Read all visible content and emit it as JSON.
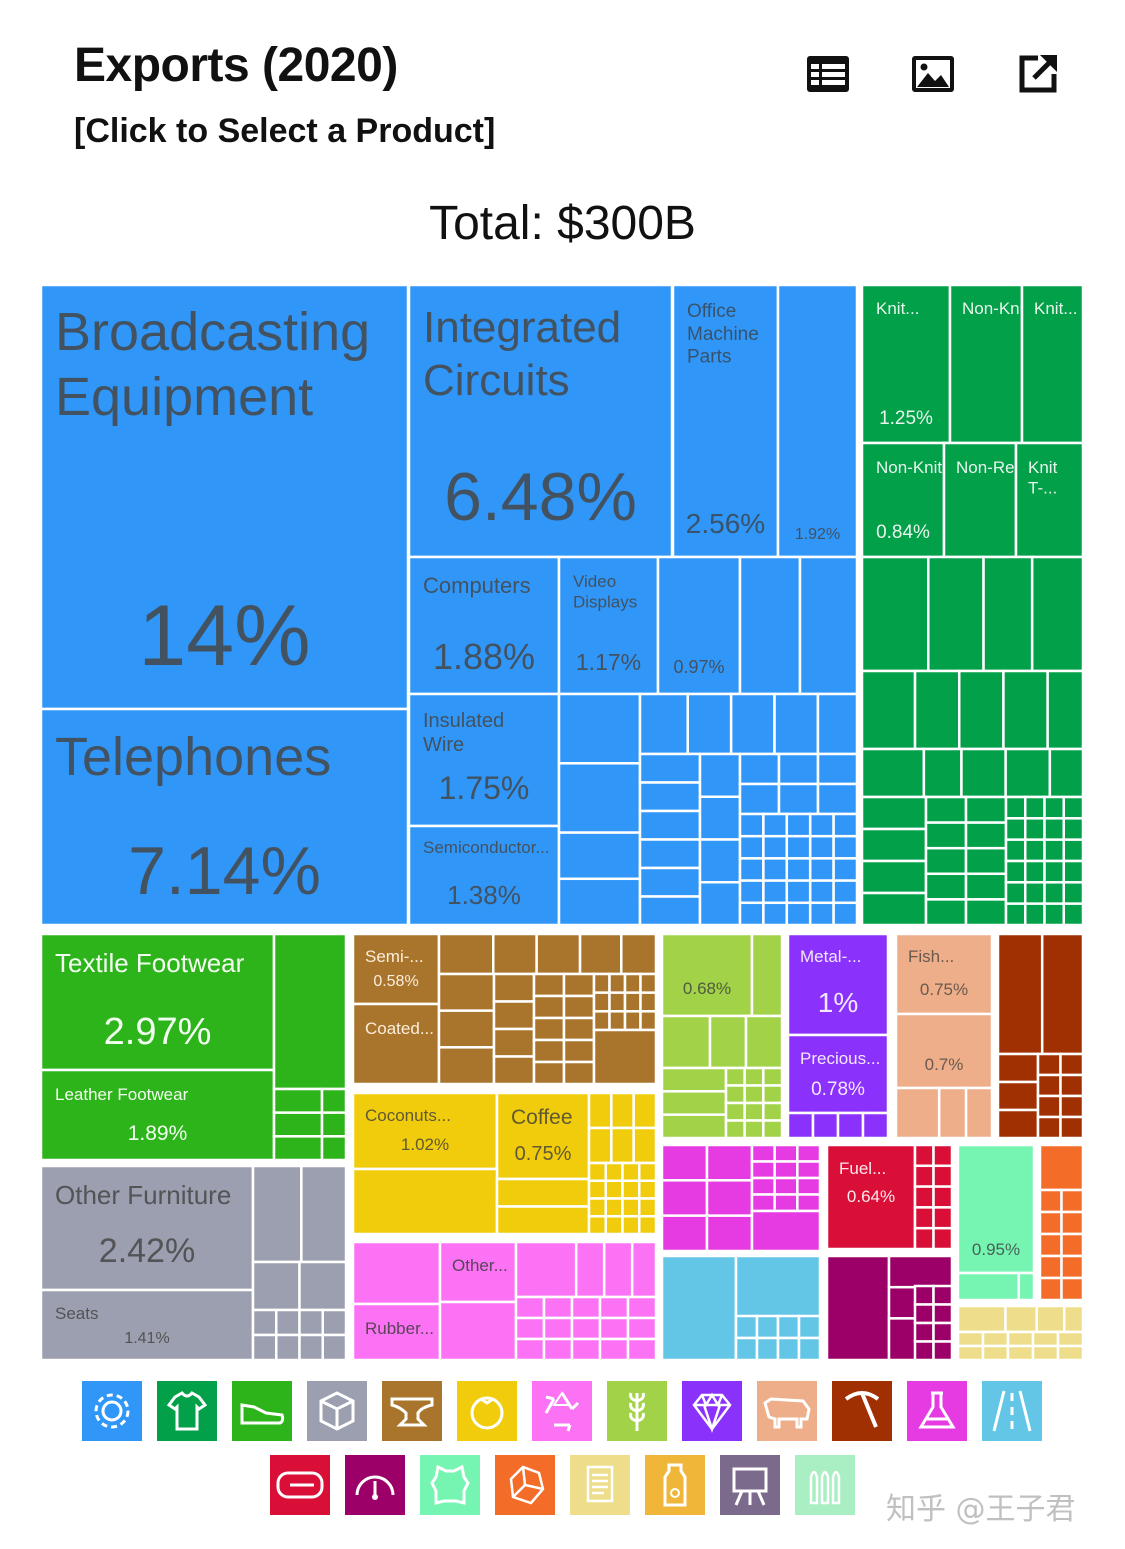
{
  "header": {
    "title": "Exports (2020)",
    "subtitle": "[Click to Select a Product]",
    "total": "Total: $300B"
  },
  "toolbar": [
    {
      "name": "table-icon"
    },
    {
      "name": "image-icon"
    },
    {
      "name": "external-link-icon"
    }
  ],
  "watermark": "知乎 @王子君",
  "colors": {
    "machinery": "#3096F8",
    "textiles": "#02A048",
    "footwear": "#2DB41A",
    "misc": "#9C9FAF",
    "metals": "#A9742B",
    "foodstuffs": "#F1CC0C",
    "plastics": "#FB72F4",
    "vegetable": "#A1D248",
    "stone": "#8A31FC",
    "animal": "#EDAE89",
    "minerals": "#A02F02",
    "chemicals": "#E63BE2",
    "transport": "#64C6E6",
    "mineral_fuels": "#D90F38",
    "instruments": "#9C0068",
    "hides": "#76F4B2",
    "animal_veg": "#F36D29",
    "paper": "#EEDD8A"
  },
  "chart_data": {
    "type": "treemap",
    "total": "$300B",
    "labeled_tiles": [
      {
        "label": "Broadcasting Equipment",
        "value": "14%",
        "sector": "machinery"
      },
      {
        "label": "Telephones",
        "value": "7.14%",
        "sector": "machinery"
      },
      {
        "label": "Integrated Circuits",
        "value": "6.48%",
        "sector": "machinery"
      },
      {
        "label": "Office Machine Parts",
        "value": "2.56%",
        "sector": "machinery"
      },
      {
        "label": "",
        "value": "1.92%",
        "sector": "machinery"
      },
      {
        "label": "Computers",
        "value": "1.88%",
        "sector": "machinery"
      },
      {
        "label": "Video Displays",
        "value": "1.17%",
        "sector": "machinery"
      },
      {
        "label": "",
        "value": "0.97%",
        "sector": "machinery"
      },
      {
        "label": "Insulated Wire",
        "value": "1.75%",
        "sector": "machinery"
      },
      {
        "label": "Semiconductor...",
        "value": "1.38%",
        "sector": "machinery"
      },
      {
        "label": "Knit...",
        "value": "1.25%",
        "sector": "textiles"
      },
      {
        "label": "Non-Knit...",
        "value": "",
        "sector": "textiles"
      },
      {
        "label": "Knit...",
        "value": "",
        "sector": "textiles"
      },
      {
        "label": "Non-Knit...",
        "value": "0.84%",
        "sector": "textiles"
      },
      {
        "label": "Non-Retail...",
        "value": "",
        "sector": "textiles"
      },
      {
        "label": "Knit T-...",
        "value": "",
        "sector": "textiles"
      },
      {
        "label": "Textile Footwear",
        "value": "2.97%",
        "sector": "footwear"
      },
      {
        "label": "Leather Footwear",
        "value": "1.89%",
        "sector": "footwear"
      },
      {
        "label": "Other Furniture",
        "value": "2.42%",
        "sector": "misc"
      },
      {
        "label": "Seats",
        "value": "1.41%",
        "sector": "misc"
      },
      {
        "label": "Semi-...",
        "value": "0.58%",
        "sector": "metals"
      },
      {
        "label": "Coated...",
        "value": "",
        "sector": "metals"
      },
      {
        "label": "Coconuts...",
        "value": "1.02%",
        "sector": "foodstuffs"
      },
      {
        "label": "Coffee",
        "value": "0.75%",
        "sector": "foodstuffs"
      },
      {
        "label": "Other...",
        "value": "",
        "sector": "plastics"
      },
      {
        "label": "Rubber...",
        "value": "",
        "sector": "plastics"
      },
      {
        "label": "",
        "value": "0.68%",
        "sector": "vegetable"
      },
      {
        "label": "Metal-...",
        "value": "1%",
        "sector": "stone"
      },
      {
        "label": "Precious...",
        "value": "0.78%",
        "sector": "stone"
      },
      {
        "label": "Fish...",
        "value": "0.75%",
        "sector": "animal"
      },
      {
        "label": "",
        "value": "0.7%",
        "sector": "animal"
      },
      {
        "label": "Fuel...",
        "value": "0.64%",
        "sector": "mineral_fuels"
      },
      {
        "label": "",
        "value": "0.95%",
        "sector": "hides"
      }
    ],
    "legend": [
      {
        "sector": "machinery",
        "icon": "gear-icon"
      },
      {
        "sector": "textiles",
        "icon": "shirt-icon"
      },
      {
        "sector": "footwear",
        "icon": "shoe-icon"
      },
      {
        "sector": "misc",
        "icon": "box-icon"
      },
      {
        "sector": "metals",
        "icon": "anvil-icon"
      },
      {
        "sector": "foodstuffs",
        "icon": "tomato-icon"
      },
      {
        "sector": "plastics",
        "icon": "recycle-icon"
      },
      {
        "sector": "vegetable",
        "icon": "wheat-icon"
      },
      {
        "sector": "stone",
        "icon": "diamond-icon"
      },
      {
        "sector": "animal",
        "icon": "cow-icon"
      },
      {
        "sector": "minerals",
        "icon": "pickaxe-icon"
      },
      {
        "sector": "chemicals",
        "icon": "flask-icon"
      },
      {
        "sector": "transport",
        "icon": "road-icon"
      },
      {
        "sector": "mineral_fuels",
        "icon": "pipe-icon"
      },
      {
        "sector": "instruments",
        "icon": "gauge-icon"
      },
      {
        "sector": "hides",
        "icon": "hide-icon"
      },
      {
        "sector": "animal_veg",
        "icon": "crystal-icon"
      },
      {
        "sector": "paper",
        "icon": "scroll-icon"
      },
      {
        "sector": "foodstuffs_bev",
        "icon": "bottle-icon"
      },
      {
        "sector": "arts",
        "icon": "easel-icon"
      },
      {
        "sector": "weapons",
        "icon": "bullets-icon"
      }
    ]
  }
}
